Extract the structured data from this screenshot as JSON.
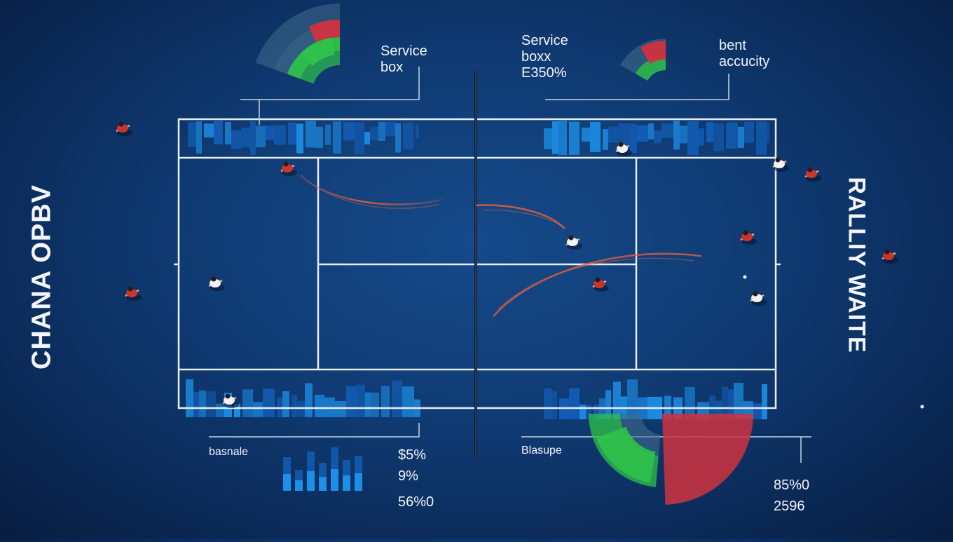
{
  "side_titles": {
    "left": "CHANA OPBV",
    "right": "RALLIY WAITE"
  },
  "labels": {
    "service_box_left": [
      "Service",
      "box"
    ],
    "service_box_right": [
      "Service",
      "boxx",
      "E350%"
    ],
    "accuracy": [
      "bent",
      "accucity"
    ],
    "baseline_left": "basnale",
    "baseline_right": "Blasupe"
  },
  "stats_left": [
    "$5%",
    "9%",
    "56%0"
  ],
  "stats_right": [
    "85%0",
    "2596"
  ],
  "colors": {
    "court_line": "#e8eef7",
    "bar_blue": "#1d8fe6",
    "bar_dark": "#135fb8",
    "arc_green": "#2fc14a",
    "arc_red": "#d0323f",
    "arc_gray": "#3f6a8a",
    "trail": "#e0603a",
    "player_red": "#c9342e",
    "player_white": "#f2f2f2"
  },
  "icons": [
    "tennis-court",
    "player-figure",
    "ball-trail",
    "radial-gauge",
    "bar-histogram"
  ]
}
